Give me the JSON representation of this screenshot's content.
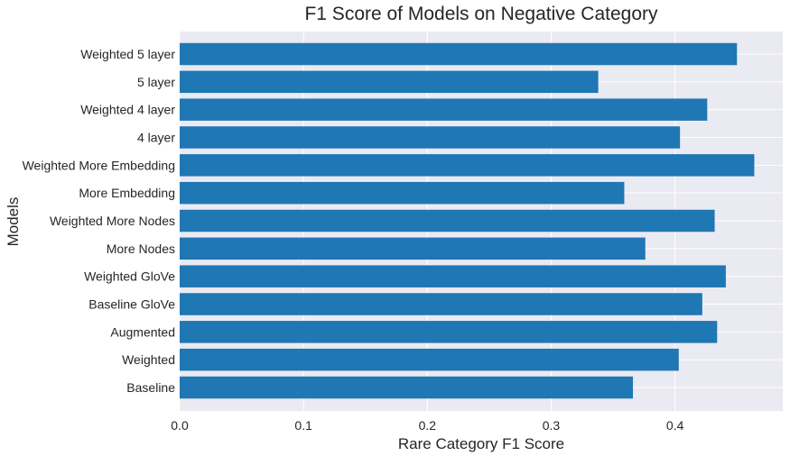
{
  "chart_data": {
    "type": "bar",
    "orientation": "horizontal",
    "title": "F1 Score of Models on Negative Category",
    "xlabel": "Rare Category F1 Score",
    "ylabel": "Models",
    "categories": [
      "Baseline",
      "Weighted",
      "Augmented",
      "Baseline GloVe",
      "Weighted GloVe",
      "More Nodes",
      "Weighted More Nodes",
      "More Embedding",
      "Weighted More Embedding",
      "4 layer",
      "Weighted 4 layer",
      "5 layer",
      "Weighted 5 layer"
    ],
    "values": [
      0.366,
      0.403,
      0.434,
      0.422,
      0.441,
      0.376,
      0.432,
      0.359,
      0.464,
      0.404,
      0.426,
      0.338,
      0.45
    ],
    "xlim": [
      0,
      0.487
    ],
    "xticks": [
      0.0,
      0.1,
      0.2,
      0.3,
      0.4
    ],
    "xtick_labels": [
      "0.0",
      "0.1",
      "0.2",
      "0.3",
      "0.4"
    ],
    "grid": true,
    "legend": "none",
    "colors": {
      "bar": "#1f77b4",
      "plot_background": "#eaeaf2",
      "grid": "#ffffff",
      "text": "#262626"
    }
  }
}
